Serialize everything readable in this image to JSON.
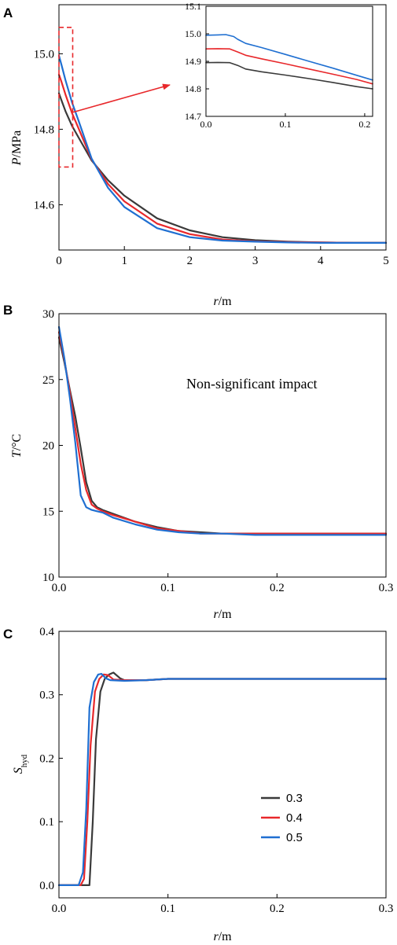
{
  "colors": {
    "s03": "#3a3a3a",
    "s04": "#e8282b",
    "s05": "#1f6fd1",
    "highlight": "#e8282b"
  },
  "legend": {
    "items": [
      "0.3",
      "0.4",
      "0.5"
    ],
    "placement": "center-right of panel C"
  },
  "chart_data": [
    {
      "id": "A",
      "panel_label": "A",
      "type": "line",
      "ylabel_var": "P",
      "ylabel_unit": "/MPa",
      "xlabel_var": "r",
      "xlabel_unit": "/m",
      "xlim": [
        0,
        5
      ],
      "ylim": [
        14.48,
        15.13
      ],
      "xticks": [
        "0",
        "1",
        "2",
        "3",
        "4",
        "5"
      ],
      "xtick_values": [
        0,
        1,
        2,
        3,
        4,
        5
      ],
      "yticks": [
        "14.6",
        "14.8",
        "15.0"
      ],
      "ytick_values": [
        14.6,
        14.8,
        15.0
      ],
      "series": [
        {
          "name": "0.3",
          "x": [
            0,
            0.04,
            0.1,
            0.2,
            0.3,
            0.5,
            0.75,
            1,
            1.5,
            2,
            2.5,
            3,
            3.5,
            4,
            4.5,
            5
          ],
          "y": [
            14.895,
            14.876,
            14.848,
            14.809,
            14.778,
            14.717,
            14.665,
            14.624,
            14.564,
            14.532,
            14.514,
            14.506,
            14.502,
            14.5,
            14.499,
            14.499
          ]
        },
        {
          "name": "0.4",
          "x": [
            0,
            0.04,
            0.1,
            0.2,
            0.3,
            0.5,
            0.75,
            1,
            1.5,
            2,
            2.5,
            3,
            3.5,
            4,
            4.5,
            5
          ],
          "y": [
            14.945,
            14.925,
            14.892,
            14.843,
            14.802,
            14.72,
            14.655,
            14.609,
            14.55,
            14.522,
            14.508,
            14.503,
            14.501,
            14.5,
            14.499,
            14.499
          ]
        },
        {
          "name": "0.5",
          "x": [
            0,
            0.04,
            0.1,
            0.2,
            0.3,
            0.5,
            0.75,
            1,
            1.5,
            2,
            2.5,
            3,
            3.5,
            4,
            4.5,
            5
          ],
          "y": [
            14.995,
            14.97,
            14.93,
            14.871,
            14.822,
            14.722,
            14.645,
            14.594,
            14.538,
            14.514,
            14.505,
            14.502,
            14.5,
            14.499,
            14.499,
            14.499
          ]
        }
      ],
      "highlight_box": {
        "x": [
          0,
          0.21
        ],
        "y": [
          14.7,
          15.07
        ]
      }
    },
    {
      "id": "A-inset",
      "type": "line",
      "xlim": [
        0,
        0.21
      ],
      "ylim": [
        14.7,
        15.1
      ],
      "xticks": [
        "0.0",
        "0.1",
        "0.2"
      ],
      "xtick_values": [
        0,
        0.1,
        0.2
      ],
      "yticks": [
        "14.7",
        "14.8",
        "14.9",
        "15.0",
        "15.1"
      ],
      "ytick_values": [
        14.7,
        14.8,
        14.9,
        15.0,
        15.1
      ],
      "series": [
        {
          "name": "0.3",
          "x": [
            0,
            0.015,
            0.03,
            0.04,
            0.05,
            0.07,
            0.1,
            0.13,
            0.16,
            0.19,
            0.21
          ],
          "y": [
            14.895,
            14.896,
            14.895,
            14.885,
            14.872,
            14.862,
            14.85,
            14.837,
            14.823,
            14.808,
            14.8
          ]
        },
        {
          "name": "0.4",
          "x": [
            0,
            0.015,
            0.03,
            0.04,
            0.05,
            0.07,
            0.1,
            0.13,
            0.16,
            0.19,
            0.21
          ],
          "y": [
            14.945,
            14.946,
            14.945,
            14.934,
            14.922,
            14.909,
            14.891,
            14.872,
            14.853,
            14.834,
            14.818
          ]
        },
        {
          "name": "0.5",
          "x": [
            0,
            0.015,
            0.025,
            0.035,
            0.04,
            0.05,
            0.07,
            0.1,
            0.13,
            0.16,
            0.19,
            0.21
          ],
          "y": [
            14.995,
            14.996,
            14.997,
            14.99,
            14.98,
            14.965,
            14.95,
            14.925,
            14.9,
            14.875,
            14.849,
            14.832
          ]
        }
      ]
    },
    {
      "id": "B",
      "panel_label": "B",
      "type": "line",
      "ylabel_var": "T",
      "ylabel_unit": "/°C",
      "xlabel_var": "r",
      "xlabel_unit": "/m",
      "xlim": [
        0,
        0.3
      ],
      "ylim": [
        10,
        30
      ],
      "xticks": [
        "0.0",
        "0.1",
        "0.2",
        "0.3"
      ],
      "xtick_values": [
        0,
        0.1,
        0.2,
        0.3
      ],
      "yticks": [
        "10",
        "15",
        "20",
        "25",
        "30"
      ],
      "ytick_values": [
        10,
        15,
        20,
        25,
        30
      ],
      "annotation": "Non-significant impact",
      "series": [
        {
          "name": "0.3",
          "x": [
            0,
            0.005,
            0.01,
            0.015,
            0.02,
            0.025,
            0.03,
            0.035,
            0.04,
            0.05,
            0.07,
            0.09,
            0.11,
            0.13,
            0.15,
            0.18,
            0.3
          ],
          "y": [
            28.2,
            26.3,
            24.2,
            22.2,
            19.8,
            17.2,
            15.8,
            15.3,
            15.1,
            14.8,
            14.2,
            13.8,
            13.5,
            13.4,
            13.3,
            13.3,
            13.3
          ]
        },
        {
          "name": "0.4",
          "x": [
            0,
            0.005,
            0.01,
            0.015,
            0.02,
            0.025,
            0.03,
            0.035,
            0.04,
            0.05,
            0.07,
            0.09,
            0.11,
            0.13,
            0.15,
            0.18,
            0.3
          ],
          "y": [
            28.6,
            26.5,
            24.0,
            21.3,
            18.6,
            16.6,
            15.5,
            15.2,
            15.0,
            14.7,
            14.2,
            13.7,
            13.5,
            13.3,
            13.3,
            13.3,
            13.3
          ]
        },
        {
          "name": "0.5",
          "x": [
            0,
            0.005,
            0.01,
            0.015,
            0.02,
            0.025,
            0.03,
            0.035,
            0.04,
            0.05,
            0.07,
            0.09,
            0.11,
            0.13,
            0.15,
            0.18,
            0.3
          ],
          "y": [
            29.0,
            26.6,
            23.6,
            20.2,
            16.2,
            15.3,
            15.1,
            15.0,
            14.9,
            14.5,
            14.0,
            13.6,
            13.4,
            13.3,
            13.3,
            13.2,
            13.2
          ]
        }
      ]
    },
    {
      "id": "C",
      "panel_label": "C",
      "type": "line",
      "ylabel_var": "S",
      "ylabel_sub": "hyd",
      "xlabel_var": "r",
      "xlabel_unit": "/m",
      "xlim": [
        0,
        0.3
      ],
      "ylim": [
        -0.02,
        0.4
      ],
      "xticks": [
        "0.0",
        "0.1",
        "0.2",
        "0.3"
      ],
      "xtick_values": [
        0,
        0.1,
        0.2,
        0.3
      ],
      "yticks": [
        "0.0",
        "0.1",
        "0.2",
        "0.3",
        "0.4"
      ],
      "ytick_values": [
        0,
        0.1,
        0.2,
        0.3,
        0.4
      ],
      "series": [
        {
          "name": "0.3",
          "x": [
            0,
            0.025,
            0.028,
            0.031,
            0.034,
            0.038,
            0.042,
            0.046,
            0.05,
            0.056,
            0.06,
            0.08,
            0.1,
            0.15,
            0.3
          ],
          "y": [
            0,
            0,
            0.0,
            0.1,
            0.23,
            0.305,
            0.325,
            0.332,
            0.335,
            0.326,
            0.323,
            0.323,
            0.325,
            0.325,
            0.325
          ]
        },
        {
          "name": "0.4",
          "x": [
            0,
            0.02,
            0.023,
            0.026,
            0.029,
            0.033,
            0.037,
            0.041,
            0.045,
            0.05,
            0.06,
            0.08,
            0.1,
            0.15,
            0.3
          ],
          "y": [
            0,
            0,
            0.01,
            0.1,
            0.22,
            0.305,
            0.325,
            0.332,
            0.331,
            0.324,
            0.323,
            0.323,
            0.325,
            0.325,
            0.325
          ]
        },
        {
          "name": "0.5",
          "x": [
            0,
            0.018,
            0.022,
            0.025,
            0.028,
            0.032,
            0.036,
            0.039,
            0.043,
            0.047,
            0.06,
            0.08,
            0.1,
            0.15,
            0.3
          ],
          "y": [
            0,
            0,
            0.02,
            0.12,
            0.28,
            0.32,
            0.332,
            0.333,
            0.326,
            0.323,
            0.322,
            0.323,
            0.325,
            0.325,
            0.325
          ]
        }
      ]
    }
  ]
}
